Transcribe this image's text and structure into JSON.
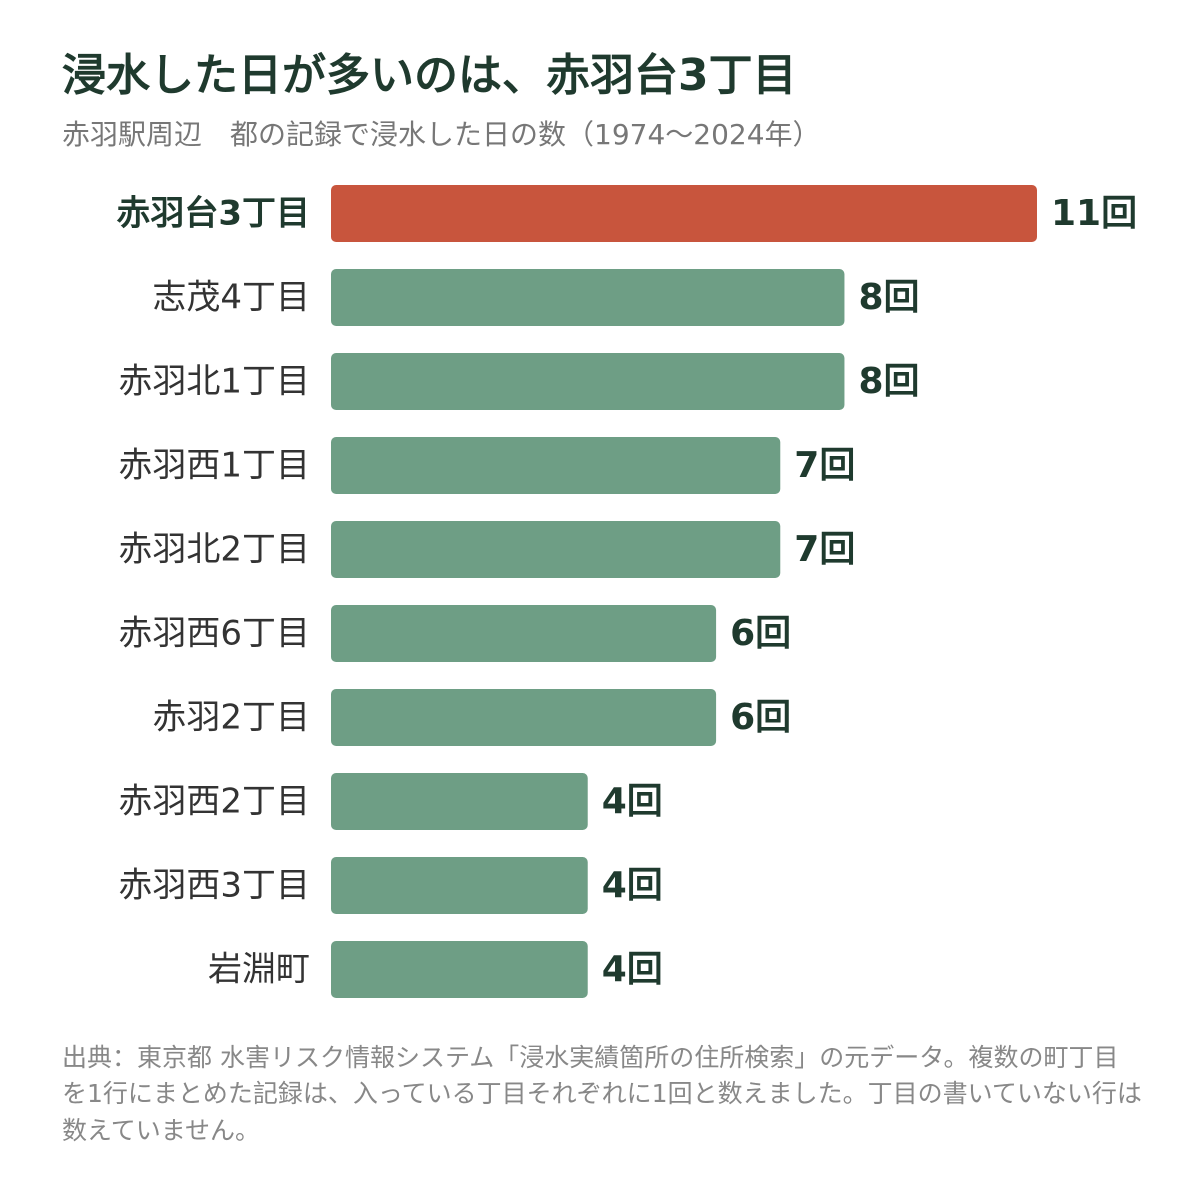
{
  "chart_data": {
    "type": "bar",
    "orientation": "horizontal",
    "title": "浸水した日が多いのは、赤羽台3丁目",
    "subtitle": "赤羽駅周辺　都の記録で浸水した日の数（1974〜2024年）",
    "categories": [
      "赤羽台3丁目",
      "志茂4丁目",
      "赤羽北1丁目",
      "赤羽西1丁目",
      "赤羽北2丁目",
      "赤羽西6丁目",
      "赤羽2丁目",
      "赤羽西2丁目",
      "赤羽西3丁目",
      "岩淵町"
    ],
    "values": [
      11,
      8,
      8,
      7,
      7,
      6,
      6,
      4,
      4,
      4
    ],
    "value_labels": [
      "11回",
      "8回",
      "8回",
      "7回",
      "7回",
      "6回",
      "6回",
      "4回",
      "4回",
      "4回"
    ],
    "highlight_index": 0,
    "colors": {
      "highlight": "#c8553d",
      "default": "#6e9e85"
    },
    "xlim": [
      0,
      11
    ],
    "grid": false,
    "legend": "none",
    "note": "出典：東京都 水害リスク情報システム「浸水実績箇所の住所検索」の元データ。複数の町丁目を1行にまとめた記録は、入っている丁目それぞれに1回と数えました。丁目の書いていない行は数えていません。"
  }
}
